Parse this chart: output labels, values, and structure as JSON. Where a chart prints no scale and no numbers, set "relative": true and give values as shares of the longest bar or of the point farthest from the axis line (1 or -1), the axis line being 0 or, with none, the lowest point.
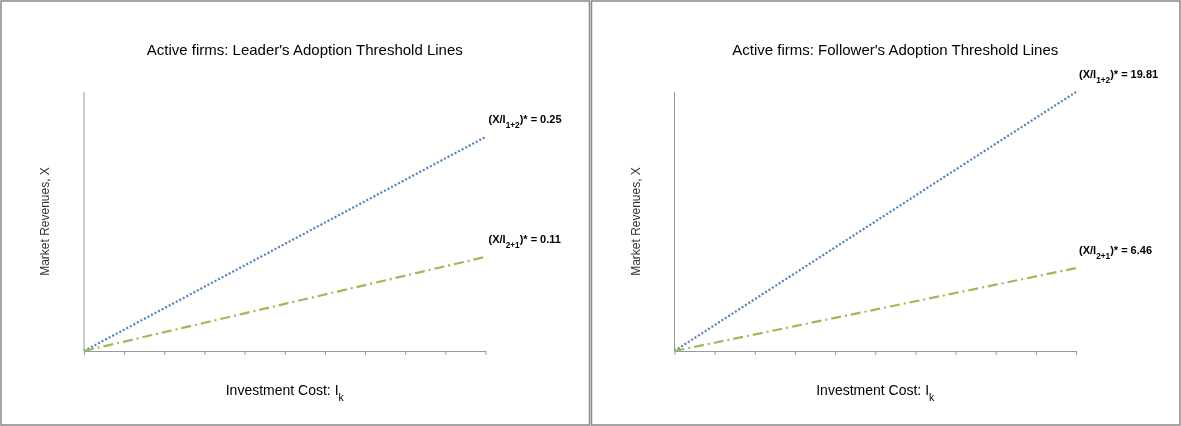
{
  "chart_data": [
    {
      "type": "line",
      "title": "Active firms: Leader's Adoption Threshold Lines",
      "xlabel": "Investment Cost: I$_{k}$",
      "ylabel": "Market Revenues, X",
      "relative": true,
      "marker": "none",
      "categories": [
        null,
        null,
        null,
        null,
        null,
        null,
        null,
        null,
        null,
        null,
        null
      ],
      "series": [
        {
          "color": "#4f81bd",
          "line_style": "dotted",
          "values": [
            0,
            0.1,
            0.2,
            0.3,
            0.4,
            0.5,
            0.6,
            0.7,
            0.8,
            0.9,
            1
          ]
        },
        {
          "color": "#9bbb59",
          "line_style": "dashed",
          "values": [
            0,
            0.044,
            0.088,
            0.132,
            0.176,
            0.22,
            0.264,
            0.308,
            0.352,
            0.396,
            0.44
          ]
        }
      ],
      "annotations": [
        "(X/I$_{1+2}$)* = 0.25",
        "(X/I$_{2+1}$)* = 0.11"
      ]
    },
    {
      "type": "line",
      "title": "Active firms: Follower's Adoption Threshold Lines",
      "xlabel": "Investment Cost: I$_{k}$",
      "ylabel": "Market Revenues, X",
      "relative": true,
      "marker": "none",
      "categories": [
        null,
        null,
        null,
        null,
        null,
        null,
        null,
        null,
        null,
        null,
        null
      ],
      "series": [
        {
          "color": "#4f81bd",
          "line_style": "dotted",
          "values": [
            0,
            0.1,
            0.2,
            0.3,
            0.4,
            0.5,
            0.6,
            0.7,
            0.8,
            0.9,
            1
          ]
        },
        {
          "color": "#9bbb59",
          "line_style": "dashed",
          "values": [
            0,
            0.032,
            0.064,
            0.096,
            0.128,
            0.16,
            0.192,
            0.224,
            0.256,
            0.288,
            0.32
          ]
        }
      ],
      "annotations": [
        "(X/I$_{1+2}$)* = 19.81",
        "(X/I$_{2+1}$)* = 6.46"
      ]
    }
  ]
}
